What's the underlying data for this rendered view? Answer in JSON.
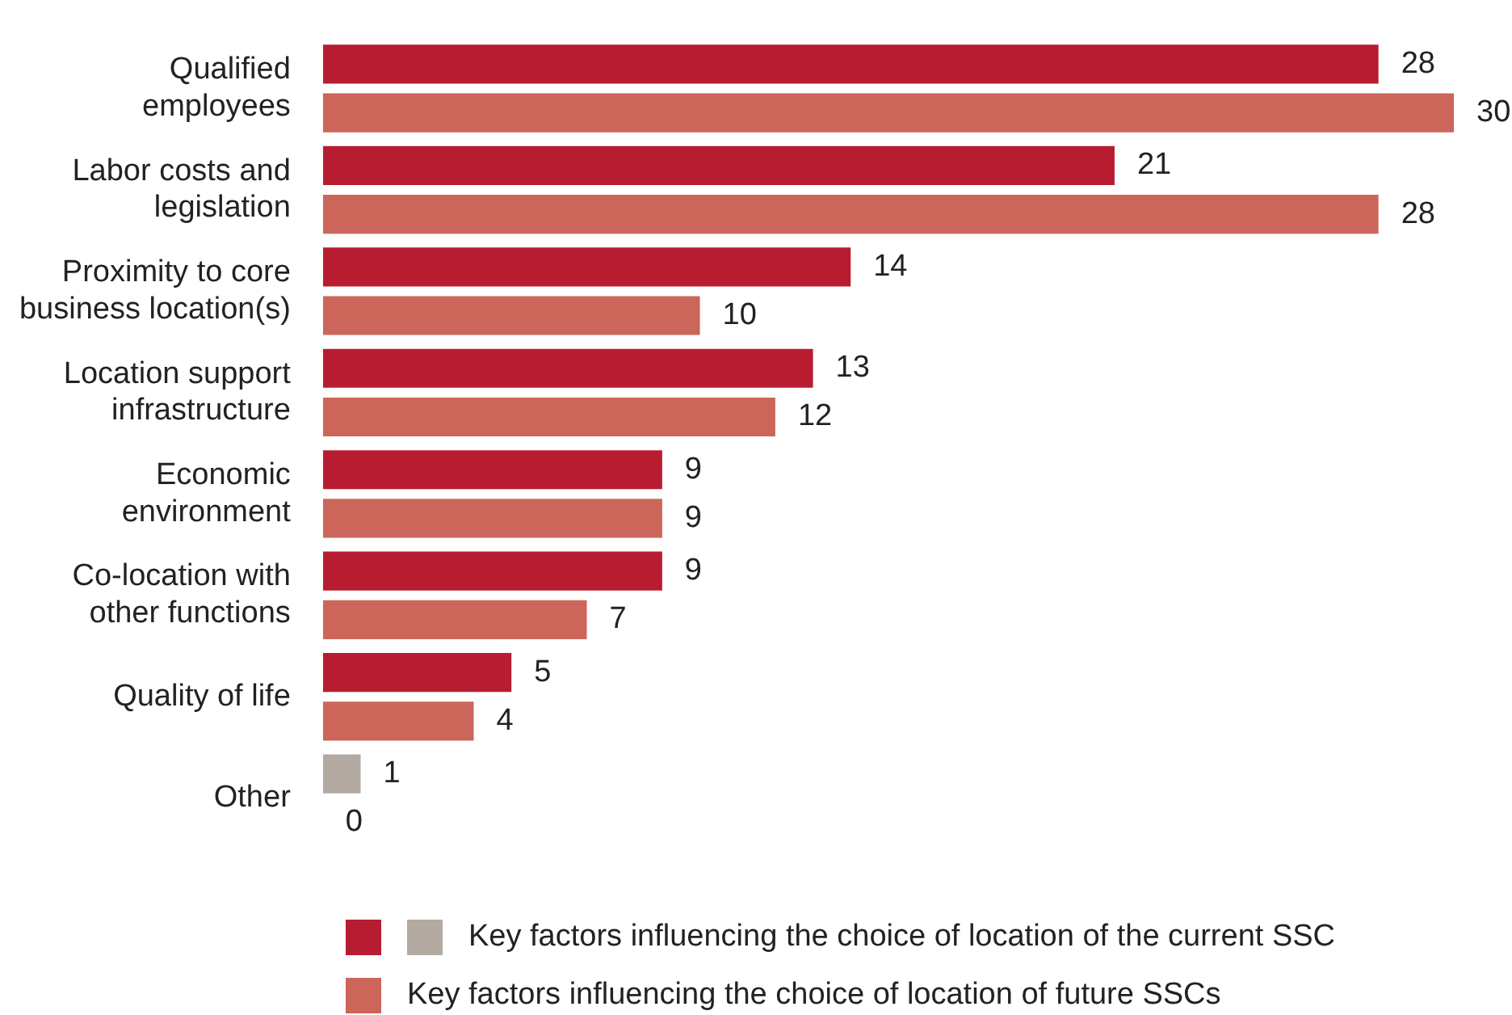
{
  "chart_data": {
    "type": "bar",
    "orientation": "horizontal",
    "data_labels": true,
    "legend": "bottom",
    "categories": [
      "Qualified employees",
      "Labor costs and legislation",
      "Proximity to core business location(s)",
      "Location support infrastructure",
      "Economic environment",
      "Co-location with other functions",
      "Quality of life",
      "Other"
    ],
    "series": [
      {
        "name": "Key factors influencing the choice of location of the current SSC",
        "color": "#b81c31",
        "colors": [
          "#b81c31",
          "#b81c31",
          "#b81c31",
          "#b81c31",
          "#b81c31",
          "#b81c31",
          "#b81c31",
          "#b3aaa1"
        ],
        "values": [
          28,
          21,
          14,
          13,
          9,
          9,
          5,
          1
        ]
      },
      {
        "name": "Key factors influencing the choice of location of future SSCs",
        "color": "#cc665b",
        "values": [
          30,
          28,
          10,
          12,
          9,
          7,
          4,
          0
        ]
      }
    ]
  }
}
